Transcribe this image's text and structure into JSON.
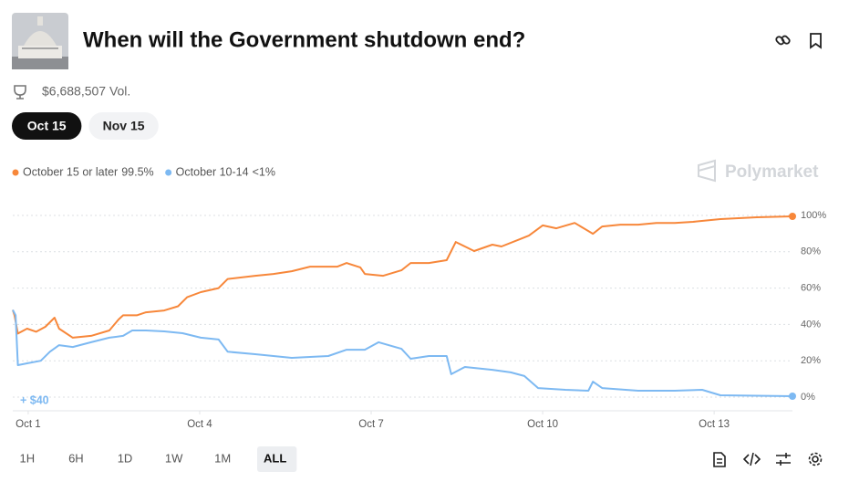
{
  "header": {
    "title": "When will the Government shutdown end?",
    "volume": "$6,688,507 Vol."
  },
  "tabs": [
    "Oct 15",
    "Nov 15"
  ],
  "active_tab": 0,
  "brand": "Polymarket",
  "ranges": [
    "1H",
    "6H",
    "1D",
    "1W",
    "1M",
    "ALL"
  ],
  "active_range": 5,
  "chart_data": {
    "type": "line",
    "annotation": "+ $40",
    "xlim": [
      0.73,
      14.37
    ],
    "xticks": [
      {
        "value": 1,
        "label": "Oct 1"
      },
      {
        "value": 4,
        "label": "Oct 4"
      },
      {
        "value": 7,
        "label": "Oct 7"
      },
      {
        "value": 10,
        "label": "Oct 10"
      },
      {
        "value": 13,
        "label": "Oct 13"
      }
    ],
    "ylim": [
      0,
      100
    ],
    "yticks": [
      {
        "value": 0,
        "label": "0%"
      },
      {
        "value": 20,
        "label": "20%"
      },
      {
        "value": 40,
        "label": "40%"
      },
      {
        "value": 60,
        "label": "60%"
      },
      {
        "value": 80,
        "label": "80%"
      },
      {
        "value": 100,
        "label": "100%"
      }
    ],
    "grid": true,
    "series": [
      {
        "name": "October 15 or later",
        "legend_value": "99.5%",
        "color": "#f7873a",
        "x": [
          0.73,
          0.76,
          0.82,
          0.98,
          1.14,
          1.3,
          1.46,
          1.54,
          1.78,
          2.1,
          2.42,
          2.58,
          2.66,
          2.9,
          3.06,
          3.38,
          3.62,
          3.78,
          4.02,
          4.33,
          4.49,
          4.97,
          5.29,
          5.61,
          5.93,
          6.41,
          6.57,
          6.81,
          6.89,
          7.21,
          7.53,
          7.69,
          8.01,
          8.32,
          8.48,
          8.64,
          8.8,
          9.12,
          9.28,
          9.6,
          9.76,
          10.0,
          10.24,
          10.56,
          10.72,
          10.88,
          11.04,
          11.36,
          11.67,
          11.99,
          12.31,
          12.63,
          13.11,
          13.75,
          14.37
        ],
        "values": [
          48,
          45,
          35,
          37.7,
          36,
          38.7,
          43.7,
          37.7,
          32.7,
          33.7,
          36.7,
          42.7,
          45,
          45,
          46.7,
          47.7,
          50,
          55,
          57.8,
          60,
          65,
          66.8,
          67.8,
          69.3,
          71.8,
          71.8,
          73.8,
          71.4,
          67.8,
          66.8,
          69.8,
          73.8,
          73.8,
          75.4,
          85.4,
          82.9,
          80.4,
          83.9,
          82.9,
          86.9,
          88.9,
          94.5,
          92.9,
          95.9,
          92.9,
          89.9,
          93.9,
          94.9,
          94.9,
          95.9,
          95.9,
          96.5,
          98,
          99,
          99.5
        ]
      },
      {
        "name": "October 10-14",
        "legend_value": "<1%",
        "color": "#7db9f2",
        "x": [
          0.73,
          0.78,
          0.82,
          0.98,
          1.22,
          1.38,
          1.54,
          1.78,
          2.1,
          2.42,
          2.66,
          2.82,
          3.06,
          3.38,
          3.7,
          4.02,
          4.33,
          4.49,
          4.97,
          5.61,
          6.25,
          6.57,
          6.89,
          7.13,
          7.53,
          7.69,
          8.01,
          8.32,
          8.4,
          8.64,
          9.12,
          9.44,
          9.68,
          9.92,
          10.4,
          10.8,
          10.88,
          11.04,
          11.67,
          12.31,
          12.79,
          13.11,
          14.37
        ],
        "values": [
          48,
          45,
          17.6,
          18.6,
          20,
          25,
          28.6,
          27.6,
          30.2,
          32.7,
          33.7,
          36.7,
          36.7,
          36.2,
          35.2,
          32.7,
          31.7,
          25,
          23.6,
          21.6,
          22.6,
          26.1,
          26.1,
          30.2,
          26.6,
          21.1,
          22.6,
          22.6,
          12.6,
          16.6,
          15,
          13.6,
          11.6,
          5,
          4,
          3.5,
          8.5,
          5,
          3.5,
          3.5,
          4,
          1,
          0.5
        ]
      }
    ]
  }
}
